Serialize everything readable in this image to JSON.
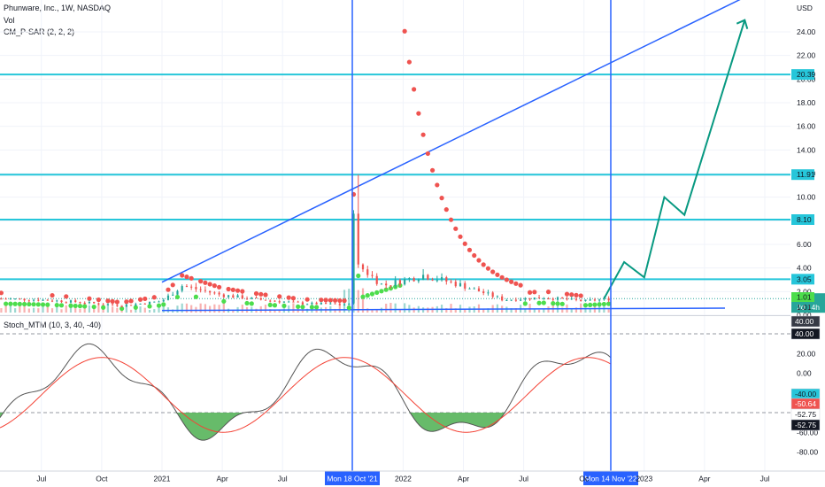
{
  "header": {
    "symbol_line": "Phunware, Inc., 1W, NASDAQ",
    "vol_label": "Vol",
    "indicator_label": "CM_P-SAR (2, 2, 2)",
    "currency": "USD"
  },
  "lower_pane": {
    "indicator_label": "Stoch_MTM (10, 3, 40, -40)"
  },
  "colors": {
    "up": "#26a69a",
    "down": "#ef5350",
    "sar_up": "#4cdd4c",
    "sar_down": "#ef5350",
    "hline": "#26c6da",
    "trend": "#2962ff",
    "projection": "#089981",
    "stoch_fill": "#4caf50",
    "k_line": "#555555",
    "d_line": "#f44336"
  },
  "chart_data": {
    "type": "candlestick",
    "title": "Phunware, Inc., 1W, NASDAQ",
    "currency": "USD",
    "price_axis_ticks": [
      "24.00",
      "22.00",
      "20.00",
      "18.00",
      "16.00",
      "14.00",
      "12.00",
      "10.00",
      "8.00",
      "6.00",
      "4.00",
      "2.00",
      "0.00"
    ],
    "time_axis_ticks": [
      "Jul",
      "Oct",
      "2021",
      "Apr",
      "Jul",
      "2022",
      "Apr",
      "Jul",
      "Oc",
      "2023",
      "Apr",
      "Jul"
    ],
    "horizontal_levels": [
      20.39,
      11.91,
      8.1,
      3.05
    ],
    "price_tags": [
      {
        "text": "20.39",
        "kind": "level"
      },
      {
        "text": "11.91",
        "kind": "level"
      },
      {
        "text": "8.10",
        "kind": "level"
      },
      {
        "text": "3.05",
        "kind": "level"
      },
      {
        "text": "1.41",
        "kind": "last"
      },
      {
        "text": "2d 14h",
        "kind": "countdown"
      },
      {
        "text": "1.01",
        "kind": "sar"
      },
      {
        "text": "1.01",
        "kind": "plain"
      }
    ],
    "vertical_markers": [
      {
        "label": "Mon 18 Oct '21",
        "date": "2021-10-18"
      },
      {
        "label": "Mon 14 Nov '22",
        "date": "2022-11-14"
      }
    ],
    "approx_weekly_close": [
      {
        "date": "2020-05",
        "close": 1.4
      },
      {
        "date": "2020-07",
        "close": 1.3
      },
      {
        "date": "2020-09",
        "close": 1.1
      },
      {
        "date": "2020-11",
        "close": 0.8
      },
      {
        "date": "2021-01",
        "close": 1.2
      },
      {
        "date": "2021-02",
        "close": 2.5
      },
      {
        "date": "2021-04",
        "close": 1.7
      },
      {
        "date": "2021-06",
        "close": 1.3
      },
      {
        "date": "2021-08",
        "close": 1.0
      },
      {
        "date": "2021-10-11",
        "close": 0.9
      },
      {
        "date": "2021-10-18",
        "close": 8.5
      },
      {
        "date": "2021-10-25",
        "close": 4.2
      },
      {
        "date": "2021-12",
        "close": 2.5
      },
      {
        "date": "2022-02",
        "close": 3.4
      },
      {
        "date": "2022-04",
        "close": 2.5
      },
      {
        "date": "2022-06",
        "close": 1.3
      },
      {
        "date": "2022-08",
        "close": 1.5
      },
      {
        "date": "2022-10",
        "close": 1.2
      },
      {
        "date": "2022-11-14",
        "close": 1.41
      }
    ],
    "highest_spike": {
      "date": "2021-10-18",
      "high": 11.91
    },
    "projection_path": [
      {
        "date": "2022-11",
        "price": 1.41
      },
      {
        "date": "2022-12",
        "price": 4.5
      },
      {
        "date": "2023-01",
        "price": 3.2
      },
      {
        "date": "2023-02",
        "price": 10.0
      },
      {
        "date": "2023-03",
        "price": 8.5
      },
      {
        "date": "2023-06",
        "price": 25.0
      }
    ],
    "stoch_axis_ticks": [
      "40.00",
      "20.00",
      "0.00",
      "-20.00",
      "-40.00",
      "-60.00",
      "-80.00"
    ],
    "stoch_tags": [
      "40.00",
      "40.00",
      "-40.00",
      "-50.64",
      "-52.75",
      "-52.75"
    ],
    "stoch_levels": [
      40,
      -40
    ]
  }
}
